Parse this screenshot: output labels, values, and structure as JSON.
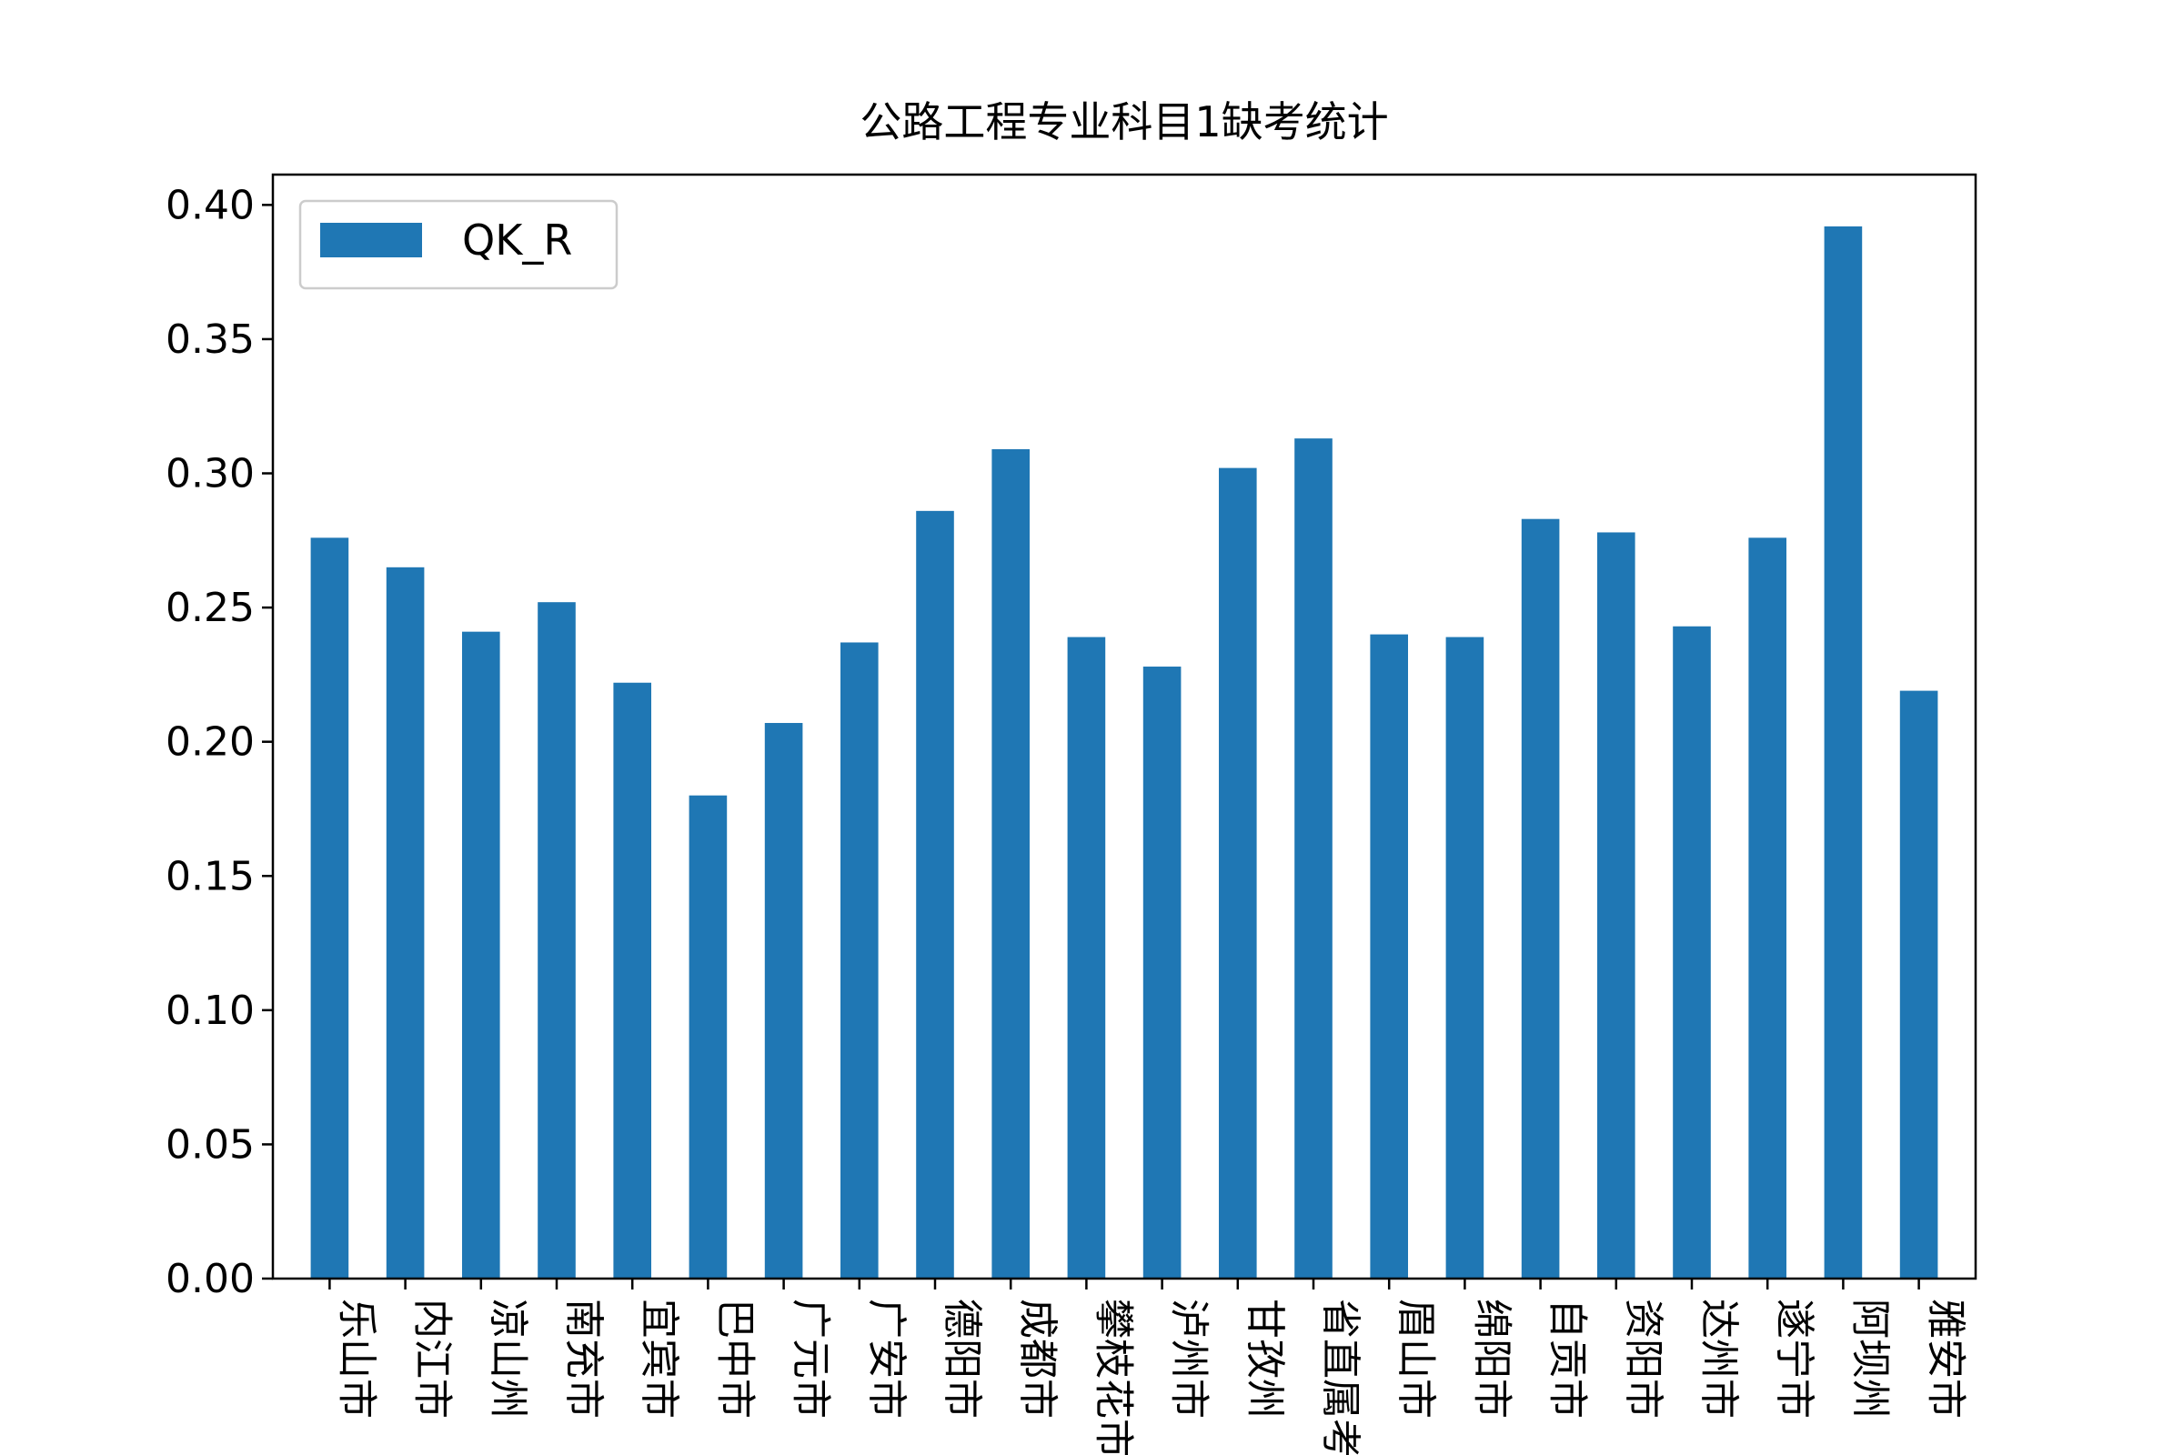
{
  "chart_data": {
    "type": "bar",
    "title": "公路工程专业科目1缺考统计",
    "xlabel": "",
    "ylabel": "",
    "categories": [
      "乐山市",
      "内江市",
      "凉山州",
      "南充市",
      "宜宾市",
      "巴中市",
      "广元市",
      "广安市",
      "德阳市",
      "成都市",
      "攀枝花市",
      "泸州市",
      "甘孜州",
      "省直属考区",
      "眉山市",
      "绵阳市",
      "自贡市",
      "资阳市",
      "达州市",
      "遂宁市",
      "阿坝州",
      "雅安市"
    ],
    "series": [
      {
        "name": "QK_R",
        "values": [
          0.276,
          0.265,
          0.241,
          0.252,
          0.222,
          0.18,
          0.207,
          0.237,
          0.286,
          0.309,
          0.239,
          0.228,
          0.302,
          0.313,
          0.24,
          0.239,
          0.283,
          0.278,
          0.243,
          0.276,
          0.392,
          0.219
        ]
      }
    ],
    "yticks": [
      "0.00",
      "0.05",
      "0.10",
      "0.15",
      "0.20",
      "0.25",
      "0.30",
      "0.35",
      "0.40"
    ],
    "ylim": [
      0,
      0.4113
    ],
    "legend": "top-left",
    "grid": false,
    "bar_color": "#1f77b4"
  }
}
